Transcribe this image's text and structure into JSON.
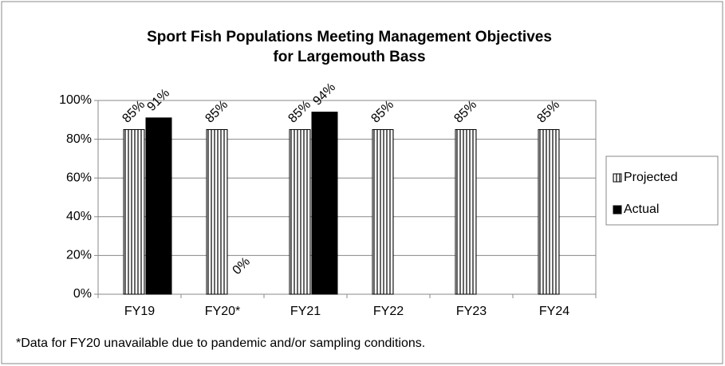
{
  "chart_data": {
    "type": "bar",
    "title": [
      "Sport Fish Populations Meeting Management Objectives",
      "for Largemouth Bass"
    ],
    "categories": [
      "FY19",
      "FY20*",
      "FY21",
      "FY22",
      "FY23",
      "FY24"
    ],
    "series": [
      {
        "name": "Projected",
        "color": "#ffffff",
        "pattern": "vertical-stripes",
        "values": [
          85,
          85,
          85,
          85,
          85,
          85
        ],
        "value_labels": [
          "85%",
          "85%",
          "85%",
          "85%",
          "85%",
          "85%"
        ]
      },
      {
        "name": "Actual",
        "color": "#000000",
        "values": [
          91,
          0,
          94,
          null,
          null,
          null
        ],
        "value_labels": [
          "91%",
          "0%",
          "94%",
          null,
          null,
          null
        ]
      }
    ],
    "ylim": [
      0,
      100
    ],
    "yticks": [
      {
        "value": 0,
        "label": "0%"
      },
      {
        "value": 20,
        "label": "20%"
      },
      {
        "value": 40,
        "label": "40%"
      },
      {
        "value": 60,
        "label": "60%"
      },
      {
        "value": 80,
        "label": "80%"
      },
      {
        "value": 100,
        "label": "100%"
      }
    ],
    "grid": true,
    "legend": "right",
    "annotation": "*Data for FY20 unavailable due to pandemic and/or sampling conditions."
  }
}
